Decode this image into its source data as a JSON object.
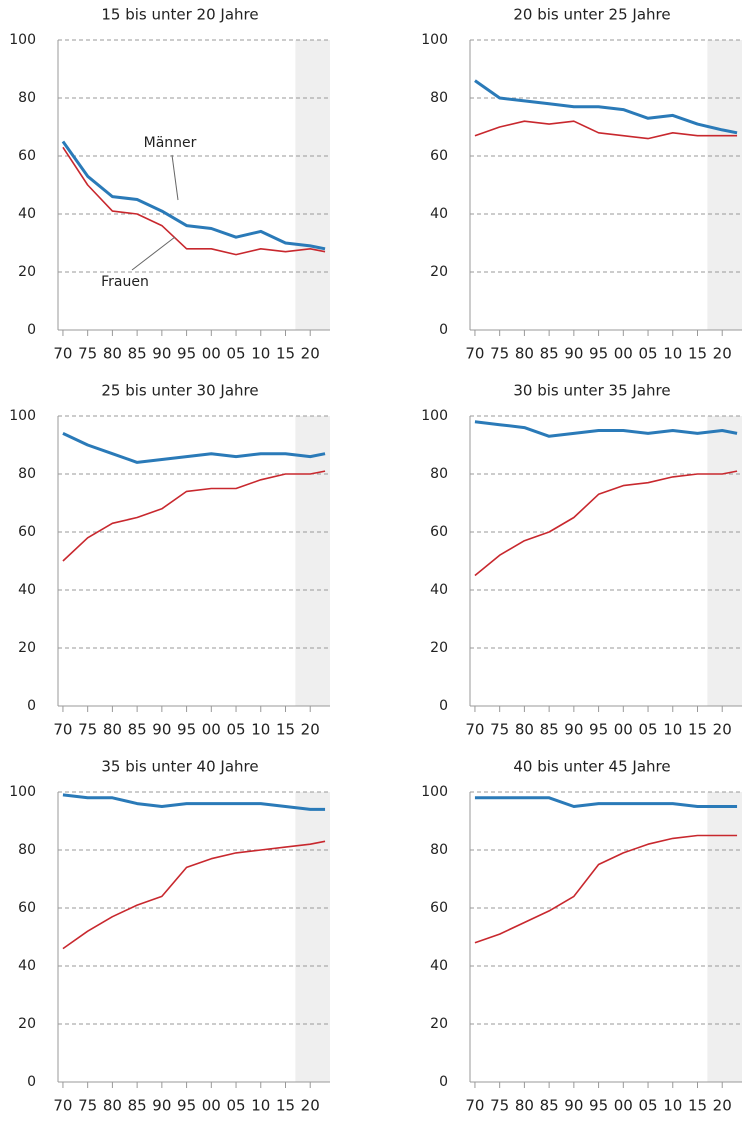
{
  "chart_data": [
    {
      "type": "line",
      "title": "15 bis unter 20 Jahre",
      "x": [
        1970,
        1975,
        1980,
        1985,
        1990,
        1995,
        2000,
        2005,
        2010,
        2015,
        2020,
        2023
      ],
      "series": [
        {
          "name": "Männer",
          "color": "#2a7ab8",
          "values": [
            65,
            53,
            46,
            45,
            41,
            36,
            35,
            32,
            34,
            30,
            29,
            28
          ]
        },
        {
          "name": "Frauen",
          "color": "#c8282e",
          "values": [
            63,
            50,
            41,
            40,
            36,
            28,
            28,
            26,
            28,
            27,
            28,
            27
          ]
        }
      ],
      "xlim": [
        1969,
        2024
      ],
      "ylim": [
        0,
        100
      ],
      "yticks": [
        0,
        20,
        40,
        60,
        80,
        100
      ],
      "xticks": [
        {
          "value": 1970,
          "label": "70"
        },
        {
          "value": 1975,
          "label": "75"
        },
        {
          "value": 1980,
          "label": "80"
        },
        {
          "value": 1985,
          "label": "85"
        },
        {
          "value": 1990,
          "label": "90"
        },
        {
          "value": 1995,
          "label": "95"
        },
        {
          "value": 2000,
          "label": "00"
        },
        {
          "value": 2005,
          "label": "05"
        },
        {
          "value": 2010,
          "label": "10"
        },
        {
          "value": 2015,
          "label": "15"
        },
        {
          "value": 2020,
          "label": "20"
        }
      ],
      "shaded_from": 2017,
      "grid": true
    },
    {
      "type": "line",
      "title": "20 bis unter 25 Jahre",
      "x": [
        1970,
        1975,
        1980,
        1985,
        1990,
        1995,
        2000,
        2005,
        2010,
        2015,
        2020,
        2023
      ],
      "series": [
        {
          "color": "#2a7ab8",
          "values": [
            86,
            80,
            79,
            78,
            77,
            77,
            76,
            73,
            74,
            71,
            69,
            68
          ]
        },
        {
          "color": "#c8282e",
          "values": [
            67,
            70,
            72,
            71,
            72,
            68,
            67,
            66,
            68,
            67,
            67,
            67
          ]
        }
      ],
      "xlim": [
        1969,
        2024
      ],
      "ylim": [
        0,
        100
      ],
      "yticks": [
        0,
        20,
        40,
        60,
        80,
        100
      ],
      "xticks": [
        {
          "value": 1970,
          "label": "70"
        },
        {
          "value": 1975,
          "label": "75"
        },
        {
          "value": 1980,
          "label": "80"
        },
        {
          "value": 1985,
          "label": "85"
        },
        {
          "value": 1990,
          "label": "90"
        },
        {
          "value": 1995,
          "label": "95"
        },
        {
          "value": 2000,
          "label": "00"
        },
        {
          "value": 2005,
          "label": "05"
        },
        {
          "value": 2010,
          "label": "10"
        },
        {
          "value": 2015,
          "label": "15"
        },
        {
          "value": 2020,
          "label": "20"
        }
      ],
      "shaded_from": 2017,
      "grid": true
    },
    {
      "type": "line",
      "title": "25 bis unter 30 Jahre",
      "x": [
        1970,
        1975,
        1980,
        1985,
        1990,
        1995,
        2000,
        2005,
        2010,
        2015,
        2020,
        2023
      ],
      "series": [
        {
          "color": "#2a7ab8",
          "values": [
            94,
            90,
            87,
            84,
            85,
            86,
            87,
            86,
            87,
            87,
            86,
            87
          ]
        },
        {
          "color": "#c8282e",
          "values": [
            50,
            58,
            63,
            65,
            68,
            74,
            75,
            75,
            78,
            80,
            80,
            81
          ]
        }
      ],
      "xlim": [
        1969,
        2024
      ],
      "ylim": [
        0,
        100
      ],
      "yticks": [
        0,
        20,
        40,
        60,
        80,
        100
      ],
      "xticks": [
        {
          "value": 1970,
          "label": "70"
        },
        {
          "value": 1975,
          "label": "75"
        },
        {
          "value": 1980,
          "label": "80"
        },
        {
          "value": 1985,
          "label": "85"
        },
        {
          "value": 1990,
          "label": "90"
        },
        {
          "value": 1995,
          "label": "95"
        },
        {
          "value": 2000,
          "label": "00"
        },
        {
          "value": 2005,
          "label": "05"
        },
        {
          "value": 2010,
          "label": "10"
        },
        {
          "value": 2015,
          "label": "15"
        },
        {
          "value": 2020,
          "label": "20"
        }
      ],
      "shaded_from": 2017,
      "grid": true
    },
    {
      "type": "line",
      "title": "30 bis unter 35 Jahre",
      "x": [
        1970,
        1975,
        1980,
        1985,
        1990,
        1995,
        2000,
        2005,
        2010,
        2015,
        2020,
        2023
      ],
      "series": [
        {
          "color": "#2a7ab8",
          "values": [
            98,
            97,
            96,
            93,
            94,
            95,
            95,
            94,
            95,
            94,
            95,
            94
          ]
        },
        {
          "color": "#c8282e",
          "values": [
            45,
            52,
            57,
            60,
            65,
            73,
            76,
            77,
            79,
            80,
            80,
            81
          ]
        }
      ],
      "xlim": [
        1969,
        2024
      ],
      "ylim": [
        0,
        100
      ],
      "yticks": [
        0,
        20,
        40,
        60,
        80,
        100
      ],
      "xticks": [
        {
          "value": 1970,
          "label": "70"
        },
        {
          "value": 1975,
          "label": "75"
        },
        {
          "value": 1980,
          "label": "80"
        },
        {
          "value": 1985,
          "label": "85"
        },
        {
          "value": 1990,
          "label": "90"
        },
        {
          "value": 1995,
          "label": "95"
        },
        {
          "value": 2000,
          "label": "00"
        },
        {
          "value": 2005,
          "label": "05"
        },
        {
          "value": 2010,
          "label": "10"
        },
        {
          "value": 2015,
          "label": "15"
        },
        {
          "value": 2020,
          "label": "20"
        }
      ],
      "shaded_from": 2017,
      "grid": true
    },
    {
      "type": "line",
      "title": "35 bis unter 40 Jahre",
      "x": [
        1970,
        1975,
        1980,
        1985,
        1990,
        1995,
        2000,
        2005,
        2010,
        2015,
        2020,
        2023
      ],
      "series": [
        {
          "color": "#2a7ab8",
          "values": [
            99,
            98,
            98,
            96,
            95,
            96,
            96,
            96,
            96,
            95,
            94,
            94
          ]
        },
        {
          "color": "#c8282e",
          "values": [
            46,
            52,
            57,
            61,
            64,
            74,
            77,
            79,
            80,
            81,
            82,
            83
          ]
        }
      ],
      "xlim": [
        1969,
        2024
      ],
      "ylim": [
        0,
        100
      ],
      "yticks": [
        0,
        20,
        40,
        60,
        80,
        100
      ],
      "xticks": [
        {
          "value": 1970,
          "label": "70"
        },
        {
          "value": 1975,
          "label": "75"
        },
        {
          "value": 1980,
          "label": "80"
        },
        {
          "value": 1985,
          "label": "85"
        },
        {
          "value": 1990,
          "label": "90"
        },
        {
          "value": 1995,
          "label": "95"
        },
        {
          "value": 2000,
          "label": "00"
        },
        {
          "value": 2005,
          "label": "05"
        },
        {
          "value": 2010,
          "label": "10"
        },
        {
          "value": 2015,
          "label": "15"
        },
        {
          "value": 2020,
          "label": "20"
        }
      ],
      "shaded_from": 2017,
      "grid": true
    },
    {
      "type": "line",
      "title": "40 bis unter 45 Jahre",
      "x": [
        1970,
        1975,
        1980,
        1985,
        1990,
        1995,
        2000,
        2005,
        2010,
        2015,
        2020,
        2023
      ],
      "series": [
        {
          "color": "#2a7ab8",
          "values": [
            98,
            98,
            98,
            98,
            95,
            96,
            96,
            96,
            96,
            95,
            95,
            95
          ]
        },
        {
          "color": "#c8282e",
          "values": [
            48,
            51,
            55,
            59,
            64,
            75,
            79,
            82,
            84,
            85,
            85,
            85
          ]
        }
      ],
      "xlim": [
        1969,
        2024
      ],
      "ylim": [
        0,
        100
      ],
      "yticks": [
        0,
        20,
        40,
        60,
        80,
        100
      ],
      "xticks": [
        {
          "value": 1970,
          "label": "70"
        },
        {
          "value": 1975,
          "label": "75"
        },
        {
          "value": 1980,
          "label": "80"
        },
        {
          "value": 1985,
          "label": "85"
        },
        {
          "value": 1990,
          "label": "90"
        },
        {
          "value": 1995,
          "label": "95"
        },
        {
          "value": 2000,
          "label": "00"
        },
        {
          "value": 2005,
          "label": "05"
        },
        {
          "value": 2010,
          "label": "10"
        },
        {
          "value": 2015,
          "label": "15"
        },
        {
          "value": 2020,
          "label": "20"
        }
      ],
      "shaded_from": 2017,
      "grid": true
    }
  ]
}
